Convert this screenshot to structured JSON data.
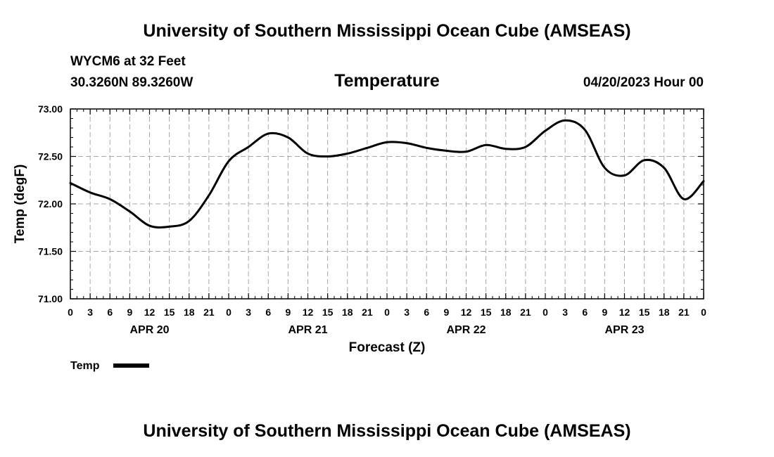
{
  "header": {
    "title": "University of Southern Mississippi Ocean Cube (AMSEAS)",
    "station": "WYCM6 at 32 Feet",
    "coords": "30.3260N  89.3260W",
    "run_time": "04/20/2023 Hour 00"
  },
  "footer": {
    "title": "University of Southern Mississippi Ocean Cube (AMSEAS)"
  },
  "chart_data": {
    "type": "line",
    "title": "Temperature",
    "xlabel": "Forecast (Z)",
    "ylabel": "Temp (degF)",
    "xlim": [
      0,
      96
    ],
    "ylim": [
      71.0,
      73.0
    ],
    "yticks": [
      "71.00",
      "71.50",
      "72.00",
      "72.50",
      "73.00"
    ],
    "ytick_values": [
      71.0,
      71.5,
      72.0,
      72.5,
      73.0
    ],
    "xtick_labels": [
      "0",
      "3",
      "6",
      "9",
      "12",
      "15",
      "18",
      "21",
      "0",
      "3",
      "6",
      "9",
      "12",
      "15",
      "18",
      "21",
      "0",
      "3",
      "6",
      "9",
      "12",
      "15",
      "18",
      "21",
      "0",
      "3",
      "6",
      "9",
      "12",
      "15",
      "18",
      "21",
      "0"
    ],
    "day_labels": [
      {
        "label": "APR 20",
        "hour": 12
      },
      {
        "label": "APR 21",
        "hour": 36
      },
      {
        "label": "APR 22",
        "hour": 60
      },
      {
        "label": "APR 23",
        "hour": 84
      }
    ],
    "grid": true,
    "legend": "bottom-left",
    "series": [
      {
        "name": "Temp",
        "color": "#000000",
        "x": [
          0,
          3,
          6,
          9,
          12,
          15,
          18,
          21,
          24,
          27,
          30,
          33,
          36,
          39,
          42,
          45,
          48,
          51,
          54,
          57,
          60,
          63,
          66,
          69,
          72,
          75,
          78,
          81,
          84,
          87,
          90,
          93,
          96
        ],
        "values": [
          72.22,
          72.12,
          72.05,
          71.92,
          71.77,
          71.76,
          71.82,
          72.09,
          72.45,
          72.6,
          72.74,
          72.7,
          72.53,
          72.5,
          72.53,
          72.59,
          72.65,
          72.64,
          72.59,
          72.56,
          72.55,
          72.62,
          72.58,
          72.6,
          72.77,
          72.88,
          72.78,
          72.38,
          72.3,
          72.46,
          72.38,
          72.05,
          72.24
        ]
      }
    ]
  }
}
